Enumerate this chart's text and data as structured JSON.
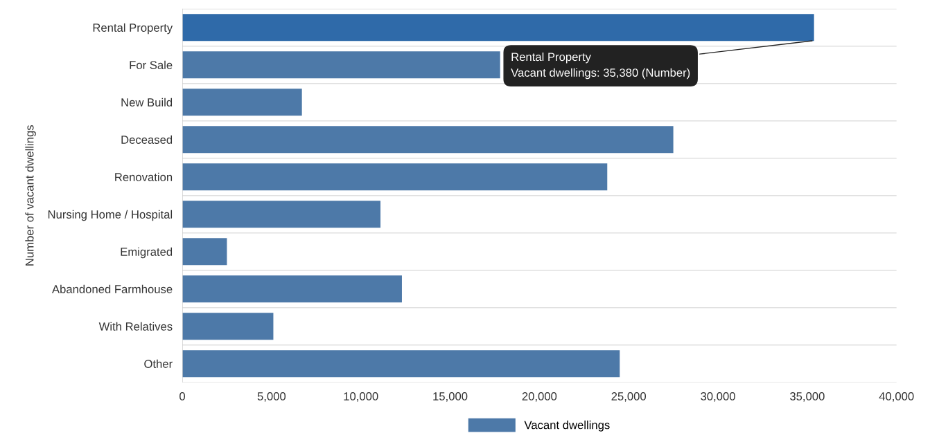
{
  "chart_data": {
    "type": "bar",
    "orientation": "horizontal",
    "ylabel": "Number of vacant dwellings",
    "categories": [
      "Rental Property",
      "For Sale",
      "New Build",
      "Deceased",
      "Renovation",
      "Nursing Home / Hospital",
      "Emigrated",
      "Abandoned Farmhouse",
      "With Relatives",
      "Other"
    ],
    "series": [
      {
        "name": "Vacant dwellings",
        "color": "#4d79a8",
        "colors": [
          "#2f6aa9",
          "#4d79a8",
          "#4d79a8",
          "#4d79a8",
          "#4d79a8",
          "#4d79a8",
          "#4d79a8",
          "#4d79a8",
          "#4d79a8",
          "#4d79a8"
        ],
        "values": [
          35380,
          17800,
          6700,
          27500,
          23800,
          11100,
          2500,
          12300,
          5100,
          24500
        ]
      }
    ],
    "xlim": [
      0,
      40000
    ],
    "xticks": [
      {
        "value": 0,
        "label": "0"
      },
      {
        "value": 5000,
        "label": "5,000"
      },
      {
        "value": 10000,
        "label": "10,000"
      },
      {
        "value": 15000,
        "label": "15,000"
      },
      {
        "value": 20000,
        "label": "20,000"
      },
      {
        "value": 25000,
        "label": "25,000"
      },
      {
        "value": 30000,
        "label": "30,000"
      },
      {
        "value": 35000,
        "label": "35,000"
      },
      {
        "value": 40000,
        "label": "40,000"
      }
    ],
    "annotations": [
      {
        "text": "Rental Property\nVacant dwellings: 35,380 (Number)",
        "x": 35380,
        "y": "Rental Property"
      }
    ],
    "grid": "y",
    "legend": "bottom"
  }
}
